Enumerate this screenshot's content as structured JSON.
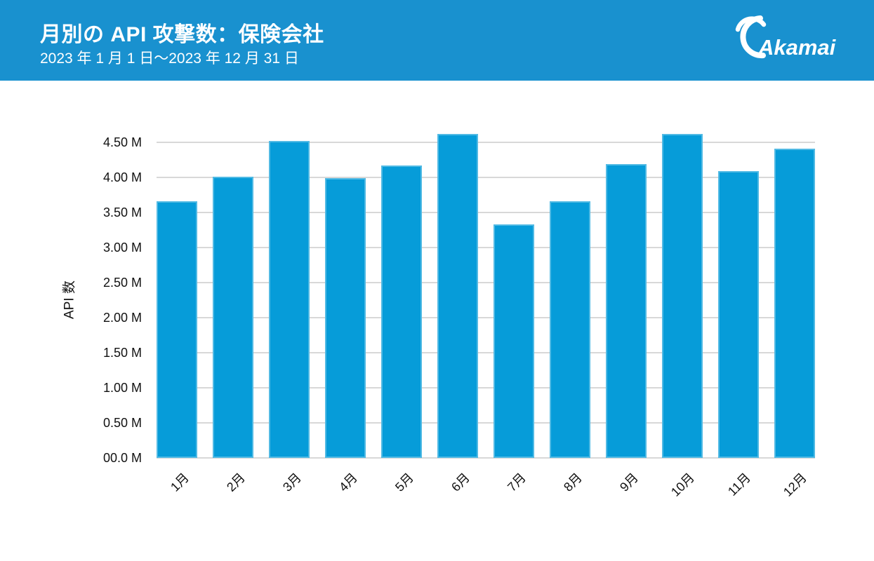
{
  "header": {
    "title": "月別の API 攻撃数：保険会社",
    "subtitle": "2023 年 1 月 1 日～2023 年 12 月 31 日",
    "logo_text": "Akamai",
    "background_color": "#1991CF",
    "text_color": "#FFFFFF"
  },
  "chart_data": {
    "type": "bar",
    "title": "月別の API 攻撃数：保険会社",
    "subtitle": "2023 年 1 月 1 日～2023 年 12 月 31 日",
    "categories": [
      "1月",
      "2月",
      "3月",
      "4月",
      "5月",
      "6月",
      "7月",
      "8月",
      "9月",
      "10月",
      "11月",
      "12月"
    ],
    "values": [
      3.66,
      4.01,
      4.52,
      3.99,
      4.17,
      4.62,
      3.33,
      3.66,
      4.19,
      4.62,
      4.09,
      4.41
    ],
    "unit": "M",
    "xlabel": "",
    "ylabel": "API 数",
    "ylim": [
      0,
      4.7
    ],
    "ytick_step": 0.5,
    "ytick_labels": [
      "00.0 M",
      "0.50 M",
      "1.00 M",
      "1.50 M",
      "2.00 M",
      "2.50 M",
      "3.00 M",
      "3.50 M",
      "4.00 M",
      "4.50 M"
    ],
    "grid": true,
    "legend": false,
    "bar_color": "#069CD9",
    "grid_color": "#D8D8D8"
  }
}
